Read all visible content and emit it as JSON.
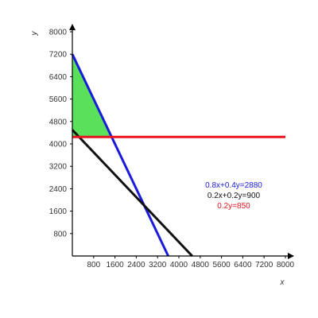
{
  "chart_data": {
    "type": "line",
    "xlabel": "x",
    "ylabel": "y",
    "xlim": [
      0,
      8000
    ],
    "ylim": [
      0,
      8000
    ],
    "x_ticks": [
      "800",
      "1600",
      "2400",
      "3200",
      "4000",
      "4800",
      "5600",
      "6400",
      "7200",
      "8000"
    ],
    "y_ticks": [
      "800",
      "1600",
      "2400",
      "3200",
      "4000",
      "4800",
      "5600",
      "6400",
      "7200",
      "8000"
    ],
    "grid": false,
    "series": [
      {
        "name": "0.8x+0.4y=2880",
        "color": "#1a1adb",
        "x": [
          0,
          3600
        ],
        "y": [
          7200,
          0
        ]
      },
      {
        "name": "0.2x+0.2y=900",
        "color": "#111111",
        "x": [
          0,
          4500
        ],
        "y": [
          4500,
          0
        ]
      },
      {
        "name": "0.2y=850",
        "color": "#e8141e",
        "x": [
          0,
          8000
        ],
        "y": [
          4250,
          4250
        ]
      }
    ],
    "feasible_region": {
      "color": "#5ae05a",
      "x": [
        0,
        0,
        1475
      ],
      "y": [
        7200,
        4250,
        4250
      ]
    }
  }
}
